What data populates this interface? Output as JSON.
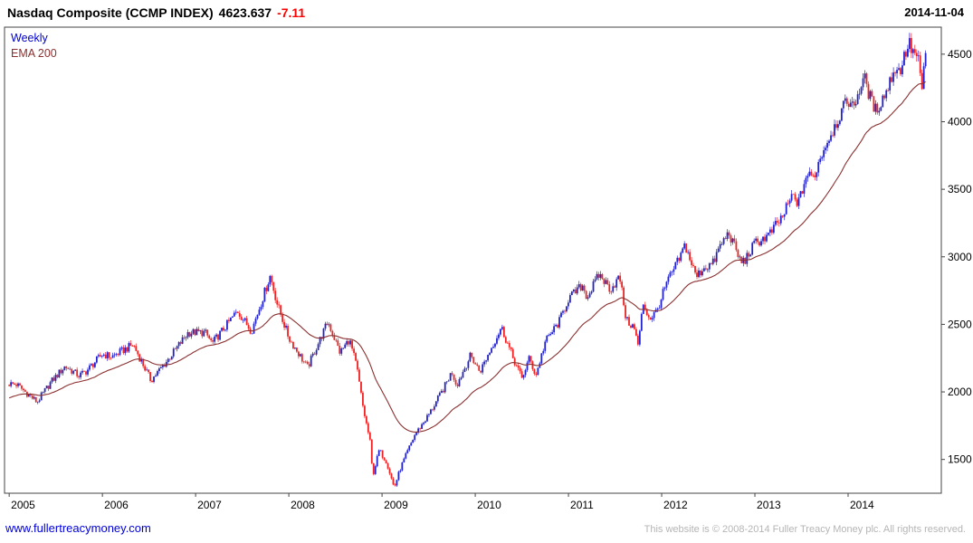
{
  "header": {
    "title": "Nasdaq Composite (CCMP INDEX)",
    "price": "4623.637",
    "change": "-7.11",
    "date": "2014-11-04"
  },
  "legend": {
    "series": "Weekly",
    "ema": "EMA 200"
  },
  "footer": {
    "site": "www.fullertreacymoney.com",
    "copyright": "This website is © 2008-2014 Fuller Treacy Money plc. All rights reserved."
  },
  "colors": {
    "candle_up": "#2222cc",
    "candle_down": "#ee2222",
    "ema_line": "#8b3030",
    "negative": "#ff0000",
    "legend_weekly": "#0000cc",
    "legend_ema": "#8b3030",
    "link": "#0000dd",
    "copyright": "#b5b5b5",
    "axis": "#444444"
  },
  "chart_data": {
    "type": "candlestick",
    "frequency": "weekly",
    "title": "Nasdaq Composite (CCMP INDEX)",
    "last_price": 4623.637,
    "change": -7.11,
    "as_of": "2014-11-04",
    "ylabel": "",
    "xlabel": "",
    "ylim": [
      1250,
      4700
    ],
    "yticks": [
      1500,
      2000,
      2500,
      3000,
      3500,
      4000,
      4500
    ],
    "xticks": [
      2005,
      2006,
      2007,
      2008,
      2009,
      2010,
      2011,
      2012,
      2013,
      2014
    ],
    "x_range": [
      2004.95,
      2015.0
    ],
    "data_start": 2005.0,
    "data_end": 2014.845,
    "grid": false,
    "legend_position": "top-left",
    "ema_label": "EMA 200",
    "ema_span_weeks": 40,
    "ema_seed": 1950,
    "anchor_points": [
      [
        2005.0,
        2060
      ],
      [
        2005.08,
        2055
      ],
      [
        2005.3,
        1925
      ],
      [
        2005.45,
        2075
      ],
      [
        2005.6,
        2190
      ],
      [
        2005.75,
        2120
      ],
      [
        2005.83,
        2155
      ],
      [
        2006.0,
        2280
      ],
      [
        2006.1,
        2260
      ],
      [
        2006.33,
        2350
      ],
      [
        2006.52,
        2085
      ],
      [
        2006.7,
        2235
      ],
      [
        2006.92,
        2440
      ],
      [
        2007.1,
        2440
      ],
      [
        2007.18,
        2360
      ],
      [
        2007.45,
        2600
      ],
      [
        2007.6,
        2450
      ],
      [
        2007.8,
        2860
      ],
      [
        2007.88,
        2640
      ],
      [
        2008.0,
        2400
      ],
      [
        2008.2,
        2180
      ],
      [
        2008.42,
        2520
      ],
      [
        2008.55,
        2290
      ],
      [
        2008.65,
        2390
      ],
      [
        2008.73,
        2180
      ],
      [
        2008.8,
        1870
      ],
      [
        2008.87,
        1640
      ],
      [
        2008.9,
        1380
      ],
      [
        2008.97,
        1570
      ],
      [
        2009.05,
        1480
      ],
      [
        2009.13,
        1290
      ],
      [
        2009.2,
        1440
      ],
      [
        2009.35,
        1680
      ],
      [
        2009.5,
        1830
      ],
      [
        2009.65,
        2010
      ],
      [
        2009.75,
        2150
      ],
      [
        2009.8,
        2050
      ],
      [
        2009.95,
        2270
      ],
      [
        2010.05,
        2150
      ],
      [
        2010.28,
        2480
      ],
      [
        2010.4,
        2260
      ],
      [
        2010.5,
        2100
      ],
      [
        2010.58,
        2250
      ],
      [
        2010.65,
        2120
      ],
      [
        2010.75,
        2370
      ],
      [
        2010.9,
        2520
      ],
      [
        2011.0,
        2690
      ],
      [
        2011.15,
        2790
      ],
      [
        2011.2,
        2700
      ],
      [
        2011.33,
        2870
      ],
      [
        2011.45,
        2760
      ],
      [
        2011.55,
        2850
      ],
      [
        2011.62,
        2530
      ],
      [
        2011.7,
        2480
      ],
      [
        2011.75,
        2340
      ],
      [
        2011.8,
        2660
      ],
      [
        2011.87,
        2540
      ],
      [
        2011.95,
        2600
      ],
      [
        2012.05,
        2800
      ],
      [
        2012.2,
        3000
      ],
      [
        2012.25,
        3090
      ],
      [
        2012.37,
        2850
      ],
      [
        2012.45,
        2920
      ],
      [
        2012.55,
        2950
      ],
      [
        2012.62,
        3070
      ],
      [
        2012.72,
        3180
      ],
      [
        2012.85,
        2960
      ],
      [
        2012.9,
        2980
      ],
      [
        2013.0,
        3100
      ],
      [
        2013.15,
        3160
      ],
      [
        2013.3,
        3300
      ],
      [
        2013.4,
        3450
      ],
      [
        2013.47,
        3400
      ],
      [
        2013.55,
        3600
      ],
      [
        2013.63,
        3590
      ],
      [
        2013.72,
        3770
      ],
      [
        2013.82,
        3920
      ],
      [
        2013.92,
        4060
      ],
      [
        2014.0,
        4170
      ],
      [
        2014.05,
        4100
      ],
      [
        2014.17,
        4330
      ],
      [
        2014.25,
        4150
      ],
      [
        2014.3,
        4080
      ],
      [
        2014.42,
        4240
      ],
      [
        2014.5,
        4400
      ],
      [
        2014.55,
        4370
      ],
      [
        2014.65,
        4580
      ],
      [
        2014.7,
        4510
      ],
      [
        2014.75,
        4475
      ],
      [
        2014.79,
        4215
      ],
      [
        2014.845,
        4630
      ]
    ]
  }
}
